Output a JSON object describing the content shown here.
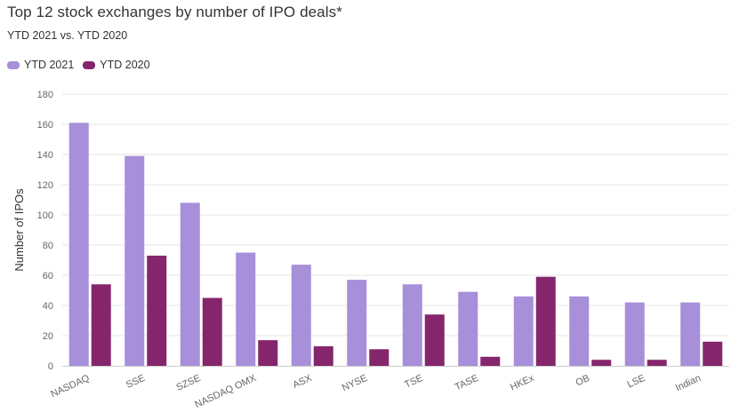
{
  "chart_data": {
    "type": "bar",
    "title": "Top 12 stock exchanges by number of IPO deals*",
    "subtitle": "YTD 2021 vs. YTD 2020",
    "xlabel": "",
    "ylabel": "Number of IPOs",
    "ylim": [
      0,
      180
    ],
    "yticks": [
      0,
      20,
      40,
      60,
      80,
      100,
      120,
      140,
      160,
      180
    ],
    "grid": true,
    "legend_position": "top-left",
    "categories": [
      "NASDAQ",
      "SSE",
      "SZSE",
      "NASDAQ OMX",
      "ASX",
      "NYSE",
      "TSE",
      "TASE",
      "HKEx",
      "OB",
      "LSE",
      "Indian"
    ],
    "series": [
      {
        "name": "YTD 2021",
        "color": "#a78fd9",
        "values": [
          161,
          139,
          108,
          75,
          67,
          57,
          54,
          49,
          46,
          46,
          42,
          42
        ]
      },
      {
        "name": "YTD 2020",
        "color": "#85266d",
        "values": [
          54,
          73,
          45,
          17,
          13,
          11,
          34,
          6,
          59,
          4,
          4,
          16
        ]
      }
    ]
  }
}
